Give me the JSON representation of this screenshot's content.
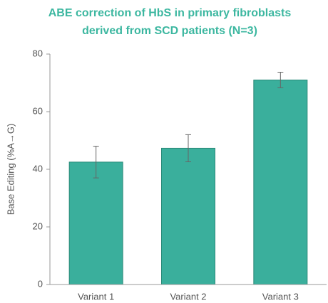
{
  "chart_data": {
    "type": "bar",
    "title": [
      "ABE correction of HbS in primary fibroblasts",
      "derived from SCD patients (N=3)"
    ],
    "ylabel": "Base Editing (%A→G)",
    "categories": [
      "Variant 1",
      "Variant 2",
      "Variant 3"
    ],
    "values": [
      42.5,
      47.3,
      71
    ],
    "errors": [
      5.5,
      4.7,
      2.7
    ],
    "color": "#3aaf9c",
    "ylim": [
      0,
      80
    ],
    "yticks": [
      0,
      20,
      40,
      60,
      80
    ],
    "grid": false
  }
}
